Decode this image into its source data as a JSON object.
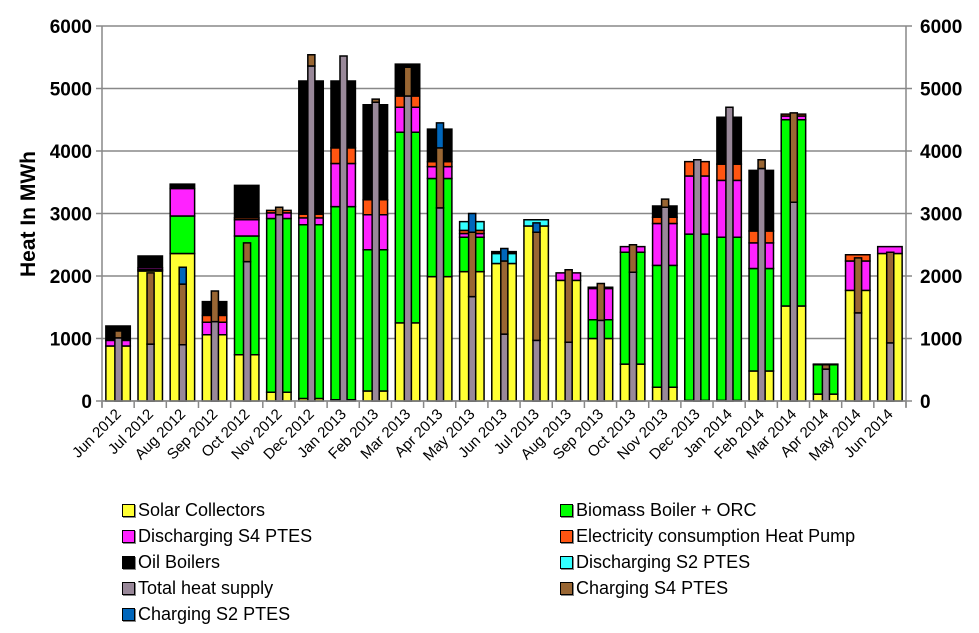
{
  "chart_data": {
    "type": "bar",
    "subtype": "stacked-clustered",
    "title": "",
    "xlabel": "",
    "ylabel": "Heat In MWh",
    "ylim": [
      0,
      6000
    ],
    "yticks": [
      "0",
      "1000",
      "2000",
      "3000",
      "4000",
      "5000",
      "6000"
    ],
    "secondary_yticks": [
      "0",
      "1000",
      "2000",
      "3000",
      "4000",
      "5000",
      "6000"
    ],
    "grid": true,
    "legend_position": "bottom",
    "categories": [
      "Jun 2012",
      "Jul 2012",
      "Aug 2012",
      "Sep 2012",
      "Oct 2012",
      "Nov 2012",
      "Dec 2012",
      "Jan 2013",
      "Feb 2013",
      "Mar 2013",
      "Apr 2013",
      "May 2013",
      "Jun 2013",
      "Jul 2013",
      "Aug 2013",
      "Sep 2013",
      "Oct 2013",
      "Nov 2013",
      "Dec 2013",
      "Jan 2014",
      "Feb 2014",
      "Mar 2014",
      "Apr 2014",
      "May 2014",
      "Jun 2014"
    ],
    "stack_groups": {
      "supply": [
        "Solar Collectors",
        "Biomass Boiler + ORC",
        "Discharging S4 PTES",
        "Electricity consumption Heat Pump",
        "Discharging S2 PTES",
        "Oil Boilers"
      ],
      "demand": [
        "Total heat supply",
        "Charging S4 PTES",
        "Charging S2 PTES"
      ]
    },
    "series": [
      {
        "name": "Solar Collectors",
        "stack": "supply",
        "color": "#ffff33",
        "values": [
          880,
          2080,
          2360,
          1060,
          740,
          140,
          40,
          20,
          160,
          1250,
          1990,
          2070,
          2200,
          2800,
          1930,
          1000,
          590,
          220,
          10,
          10,
          480,
          1520,
          110,
          1770,
          2360
        ]
      },
      {
        "name": "Biomass Boiler + ORC",
        "stack": "supply",
        "color": "#00ff00",
        "values": [
          0,
          20,
          600,
          0,
          1900,
          2780,
          2780,
          3090,
          2260,
          3050,
          1570,
          550,
          0,
          0,
          0,
          300,
          1790,
          1950,
          2660,
          2610,
          1640,
          2980,
          470,
          0,
          0
        ]
      },
      {
        "name": "Discharging S4 PTES",
        "stack": "supply",
        "color": "#ff22ff",
        "values": [
          90,
          30,
          440,
          200,
          260,
          90,
          110,
          690,
          560,
          400,
          190,
          60,
          0,
          0,
          120,
          500,
          90,
          670,
          930,
          910,
          410,
          60,
          0,
          470,
          110
        ]
      },
      {
        "name": "Electricity consumption Heat Pump",
        "stack": "supply",
        "color": "#ff5511",
        "values": [
          0,
          0,
          0,
          110,
          30,
          40,
          60,
          250,
          240,
          180,
          80,
          50,
          0,
          0,
          0,
          0,
          0,
          100,
          230,
          260,
          190,
          30,
          0,
          100,
          0
        ]
      },
      {
        "name": "Discharging S2 PTES",
        "stack": "supply",
        "color": "#33ffff",
        "values": [
          0,
          0,
          0,
          0,
          0,
          0,
          0,
          0,
          0,
          0,
          0,
          140,
          160,
          100,
          0,
          0,
          0,
          0,
          0,
          0,
          0,
          0,
          0,
          0,
          0
        ]
      },
      {
        "name": "Oil Boilers",
        "stack": "supply",
        "color": "#000000",
        "values": [
          230,
          190,
          70,
          220,
          520,
          0,
          2130,
          1070,
          1520,
          510,
          520,
          0,
          30,
          0,
          0,
          20,
          0,
          180,
          0,
          750,
          970,
          0,
          10,
          0,
          0
        ]
      },
      {
        "name": "Total heat supply",
        "stack": "demand",
        "color": "#998899",
        "values": [
          1010,
          910,
          900,
          1270,
          2230,
          2980,
          5360,
          5520,
          4780,
          4880,
          3090,
          1670,
          1070,
          970,
          940,
          1290,
          2060,
          3100,
          3860,
          4700,
          3720,
          3180,
          510,
          1410,
          930
        ]
      },
      {
        "name": "Charging S4 PTES",
        "stack": "demand",
        "color": "#996633",
        "values": [
          110,
          1140,
          970,
          490,
          300,
          120,
          180,
          0,
          50,
          460,
          960,
          1030,
          1170,
          1730,
          1160,
          590,
          440,
          130,
          0,
          0,
          140,
          1430,
          70,
          880,
          1450
        ]
      },
      {
        "name": "Charging S2 PTES",
        "stack": "demand",
        "color": "#0066bb",
        "values": [
          0,
          0,
          270,
          0,
          0,
          0,
          0,
          0,
          0,
          0,
          400,
          300,
          200,
          150,
          0,
          0,
          0,
          0,
          0,
          0,
          0,
          0,
          0,
          0,
          0
        ]
      }
    ]
  }
}
